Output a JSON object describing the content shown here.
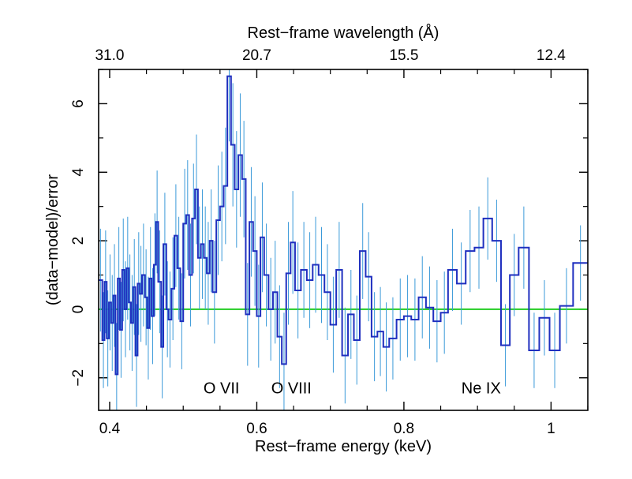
{
  "chart_data": {
    "type": "line",
    "subtype": "step",
    "xlabel": "Rest−frame energy (keV)",
    "ylabel": "(data−model)/error",
    "top_axis_label": "Rest−frame wavelength (Å)",
    "xlim": [
      0.385,
      1.05
    ],
    "ylim": [
      -2.95,
      7.0
    ],
    "x_ticks": [
      0.4,
      0.6,
      0.8,
      1.0
    ],
    "x_tick_labels": [
      "0.4",
      "0.6",
      "0.8",
      "1"
    ],
    "y_ticks": [
      -2,
      0,
      2,
      4,
      6
    ],
    "y_tick_labels": [
      "−2",
      "0",
      "2",
      "4",
      "6"
    ],
    "top_ticks": [
      {
        "label": "31.0",
        "energy": 0.4
      },
      {
        "label": "20.7",
        "energy": 0.6
      },
      {
        "label": "15.5",
        "energy": 0.8
      },
      {
        "label": "12.4",
        "energy": 1.0
      }
    ],
    "reference_line": {
      "y": 0,
      "color": "#22cc22"
    },
    "annotations": [
      {
        "text": "O VII",
        "x": 0.552,
        "y": -2.45
      },
      {
        "text": "O VIII",
        "x": 0.647,
        "y": -2.45
      },
      {
        "text": "Ne IX",
        "x": 0.905,
        "y": -2.45
      }
    ],
    "series": [
      {
        "color": "#1f2fbf",
        "error_color": "#3b9ad9",
        "bins": [
          {
            "x0": 0.385,
            "x1": 0.39,
            "y": 0.85,
            "e": 1.5
          },
          {
            "x0": 0.39,
            "x1": 0.393,
            "y": -0.9,
            "e": 1.4
          },
          {
            "x0": 0.393,
            "x1": 0.396,
            "y": 0.8,
            "e": 1.5
          },
          {
            "x0": 0.396,
            "x1": 0.399,
            "y": -0.85,
            "e": 1.4
          },
          {
            "x0": 0.399,
            "x1": 0.402,
            "y": 0.2,
            "e": 1.4
          },
          {
            "x0": 0.402,
            "x1": 0.405,
            "y": -0.4,
            "e": 1.4
          },
          {
            "x0": 0.405,
            "x1": 0.408,
            "y": 0.4,
            "e": 1.5
          },
          {
            "x0": 0.408,
            "x1": 0.411,
            "y": -1.9,
            "e": 1.5
          },
          {
            "x0": 0.411,
            "x1": 0.414,
            "y": 0.9,
            "e": 1.5
          },
          {
            "x0": 0.414,
            "x1": 0.417,
            "y": -0.6,
            "e": 1.4
          },
          {
            "x0": 0.417,
            "x1": 0.42,
            "y": 1.15,
            "e": 1.5
          },
          {
            "x0": 0.42,
            "x1": 0.423,
            "y": 0.0,
            "e": 1.4
          },
          {
            "x0": 0.423,
            "x1": 0.426,
            "y": 1.2,
            "e": 1.5
          },
          {
            "x0": 0.426,
            "x1": 0.429,
            "y": 0.2,
            "e": 1.4
          },
          {
            "x0": 0.429,
            "x1": 0.432,
            "y": -0.4,
            "e": 1.4
          },
          {
            "x0": 0.432,
            "x1": 0.435,
            "y": 0.65,
            "e": 1.4
          },
          {
            "x0": 0.435,
            "x1": 0.438,
            "y": -1.35,
            "e": 1.5
          },
          {
            "x0": 0.438,
            "x1": 0.441,
            "y": 0.75,
            "e": 1.5
          },
          {
            "x0": 0.441,
            "x1": 0.444,
            "y": 0.45,
            "e": 1.4
          },
          {
            "x0": 0.444,
            "x1": 0.448,
            "y": 1.0,
            "e": 1.5
          },
          {
            "x0": 0.448,
            "x1": 0.451,
            "y": 0.35,
            "e": 1.4
          },
          {
            "x0": 0.451,
            "x1": 0.454,
            "y": -0.55,
            "e": 1.5
          },
          {
            "x0": 0.454,
            "x1": 0.457,
            "y": 0.9,
            "e": 1.5
          },
          {
            "x0": 0.457,
            "x1": 0.46,
            "y": -0.2,
            "e": 1.4
          },
          {
            "x0": 0.46,
            "x1": 0.463,
            "y": 1.3,
            "e": 1.5
          },
          {
            "x0": 0.463,
            "x1": 0.466,
            "y": 2.55,
            "e": 1.5
          },
          {
            "x0": 0.466,
            "x1": 0.47,
            "y": 0.8,
            "e": 1.5
          },
          {
            "x0": 0.47,
            "x1": 0.473,
            "y": -1.1,
            "e": 1.5
          },
          {
            "x0": 0.473,
            "x1": 0.477,
            "y": 1.9,
            "e": 1.5
          },
          {
            "x0": 0.477,
            "x1": 0.48,
            "y": 0.0,
            "e": 1.4
          },
          {
            "x0": 0.48,
            "x1": 0.484,
            "y": -0.3,
            "e": 1.4
          },
          {
            "x0": 0.484,
            "x1": 0.488,
            "y": 0.6,
            "e": 1.5
          },
          {
            "x0": 0.488,
            "x1": 0.492,
            "y": 2.15,
            "e": 1.5
          },
          {
            "x0": 0.492,
            "x1": 0.496,
            "y": 1.2,
            "e": 1.5
          },
          {
            "x0": 0.496,
            "x1": 0.5,
            "y": -0.35,
            "e": 1.4
          },
          {
            "x0": 0.5,
            "x1": 0.504,
            "y": 2.5,
            "e": 1.6
          },
          {
            "x0": 0.504,
            "x1": 0.508,
            "y": 2.75,
            "e": 1.6
          },
          {
            "x0": 0.508,
            "x1": 0.512,
            "y": 1.0,
            "e": 1.5
          },
          {
            "x0": 0.512,
            "x1": 0.516,
            "y": 2.65,
            "e": 1.6
          },
          {
            "x0": 0.516,
            "x1": 0.52,
            "y": 3.5,
            "e": 1.6
          },
          {
            "x0": 0.52,
            "x1": 0.524,
            "y": 1.5,
            "e": 1.5
          },
          {
            "x0": 0.524,
            "x1": 0.528,
            "y": 1.9,
            "e": 1.6
          },
          {
            "x0": 0.528,
            "x1": 0.532,
            "y": 1.5,
            "e": 1.5
          },
          {
            "x0": 0.532,
            "x1": 0.536,
            "y": 1.05,
            "e": 1.5
          },
          {
            "x0": 0.536,
            "x1": 0.54,
            "y": 2.0,
            "e": 1.5
          },
          {
            "x0": 0.54,
            "x1": 0.545,
            "y": 0.5,
            "e": 1.5
          },
          {
            "x0": 0.545,
            "x1": 0.55,
            "y": 2.6,
            "e": 1.6
          },
          {
            "x0": 0.55,
            "x1": 0.555,
            "y": 3.0,
            "e": 1.6
          },
          {
            "x0": 0.555,
            "x1": 0.56,
            "y": 3.6,
            "e": 1.7
          },
          {
            "x0": 0.56,
            "x1": 0.565,
            "y": 6.8,
            "e": 1.9
          },
          {
            "x0": 0.565,
            "x1": 0.57,
            "y": 4.8,
            "e": 1.8
          },
          {
            "x0": 0.57,
            "x1": 0.575,
            "y": 3.5,
            "e": 1.7
          },
          {
            "x0": 0.575,
            "x1": 0.58,
            "y": 4.5,
            "e": 1.8
          },
          {
            "x0": 0.58,
            "x1": 0.585,
            "y": 3.8,
            "e": 1.7
          },
          {
            "x0": 0.585,
            "x1": 0.59,
            "y": -0.15,
            "e": 1.5
          },
          {
            "x0": 0.59,
            "x1": 0.595,
            "y": 2.55,
            "e": 1.6
          },
          {
            "x0": 0.595,
            "x1": 0.6,
            "y": 1.7,
            "e": 1.6
          },
          {
            "x0": 0.6,
            "x1": 0.605,
            "y": -0.2,
            "e": 1.5
          },
          {
            "x0": 0.605,
            "x1": 0.61,
            "y": 2.1,
            "e": 1.6
          },
          {
            "x0": 0.61,
            "x1": 0.616,
            "y": 1.0,
            "e": 1.5
          },
          {
            "x0": 0.616,
            "x1": 0.622,
            "y": 0.0,
            "e": 1.5
          },
          {
            "x0": 0.622,
            "x1": 0.628,
            "y": 0.5,
            "e": 1.5
          },
          {
            "x0": 0.628,
            "x1": 0.634,
            "y": -0.8,
            "e": 1.5
          },
          {
            "x0": 0.634,
            "x1": 0.64,
            "y": -1.6,
            "e": 1.5
          },
          {
            "x0": 0.64,
            "x1": 0.646,
            "y": 1.05,
            "e": 1.5
          },
          {
            "x0": 0.646,
            "x1": 0.652,
            "y": 1.95,
            "e": 1.5
          },
          {
            "x0": 0.652,
            "x1": 0.66,
            "y": 0.55,
            "e": 1.4
          },
          {
            "x0": 0.66,
            "x1": 0.668,
            "y": 1.15,
            "e": 1.4
          },
          {
            "x0": 0.668,
            "x1": 0.676,
            "y": 0.85,
            "e": 1.4
          },
          {
            "x0": 0.676,
            "x1": 0.684,
            "y": 1.3,
            "e": 1.4
          },
          {
            "x0": 0.684,
            "x1": 0.692,
            "y": 1.0,
            "e": 1.4
          },
          {
            "x0": 0.692,
            "x1": 0.7,
            "y": 0.5,
            "e": 1.4
          },
          {
            "x0": 0.7,
            "x1": 0.708,
            "y": -0.45,
            "e": 1.4
          },
          {
            "x0": 0.708,
            "x1": 0.716,
            "y": 1.15,
            "e": 1.4
          },
          {
            "x0": 0.716,
            "x1": 0.724,
            "y": -1.35,
            "e": 1.4
          },
          {
            "x0": 0.724,
            "x1": 0.732,
            "y": -0.15,
            "e": 1.3
          },
          {
            "x0": 0.732,
            "x1": 0.74,
            "y": -0.9,
            "e": 1.3
          },
          {
            "x0": 0.74,
            "x1": 0.748,
            "y": 1.7,
            "e": 1.4
          },
          {
            "x0": 0.748,
            "x1": 0.756,
            "y": 0.95,
            "e": 1.3
          },
          {
            "x0": 0.756,
            "x1": 0.764,
            "y": -0.8,
            "e": 1.3
          },
          {
            "x0": 0.764,
            "x1": 0.772,
            "y": -0.65,
            "e": 1.3
          },
          {
            "x0": 0.772,
            "x1": 0.78,
            "y": -1.1,
            "e": 1.3
          },
          {
            "x0": 0.78,
            "x1": 0.79,
            "y": -0.85,
            "e": 1.2
          },
          {
            "x0": 0.79,
            "x1": 0.8,
            "y": -0.3,
            "e": 1.2
          },
          {
            "x0": 0.8,
            "x1": 0.81,
            "y": -0.2,
            "e": 1.2
          },
          {
            "x0": 0.81,
            "x1": 0.82,
            "y": -0.3,
            "e": 1.2
          },
          {
            "x0": 0.82,
            "x1": 0.83,
            "y": 0.35,
            "e": 1.2
          },
          {
            "x0": 0.83,
            "x1": 0.84,
            "y": 0.05,
            "e": 1.2
          },
          {
            "x0": 0.84,
            "x1": 0.85,
            "y": -0.35,
            "e": 1.2
          },
          {
            "x0": 0.85,
            "x1": 0.86,
            "y": -0.1,
            "e": 1.2
          },
          {
            "x0": 0.86,
            "x1": 0.872,
            "y": 1.15,
            "e": 1.2
          },
          {
            "x0": 0.872,
            "x1": 0.884,
            "y": 0.75,
            "e": 1.2
          },
          {
            "x0": 0.884,
            "x1": 0.896,
            "y": 1.7,
            "e": 1.2
          },
          {
            "x0": 0.896,
            "x1": 0.908,
            "y": 1.8,
            "e": 1.2
          },
          {
            "x0": 0.908,
            "x1": 0.92,
            "y": 2.65,
            "e": 1.2
          },
          {
            "x0": 0.92,
            "x1": 0.932,
            "y": 2.0,
            "e": 1.2
          },
          {
            "x0": 0.932,
            "x1": 0.944,
            "y": -1.05,
            "e": 1.2
          },
          {
            "x0": 0.944,
            "x1": 0.956,
            "y": 1.0,
            "e": 1.2
          },
          {
            "x0": 0.956,
            "x1": 0.97,
            "y": 1.8,
            "e": 1.2
          },
          {
            "x0": 0.97,
            "x1": 0.984,
            "y": -1.2,
            "e": 1.1
          },
          {
            "x0": 0.984,
            "x1": 0.998,
            "y": -0.25,
            "e": 1.1
          },
          {
            "x0": 0.998,
            "x1": 1.012,
            "y": -1.2,
            "e": 1.1
          },
          {
            "x0": 1.012,
            "x1": 1.03,
            "y": 0.1,
            "e": 1.1
          },
          {
            "x0": 1.03,
            "x1": 1.05,
            "y": 1.35,
            "e": 1.1
          }
        ]
      }
    ]
  }
}
